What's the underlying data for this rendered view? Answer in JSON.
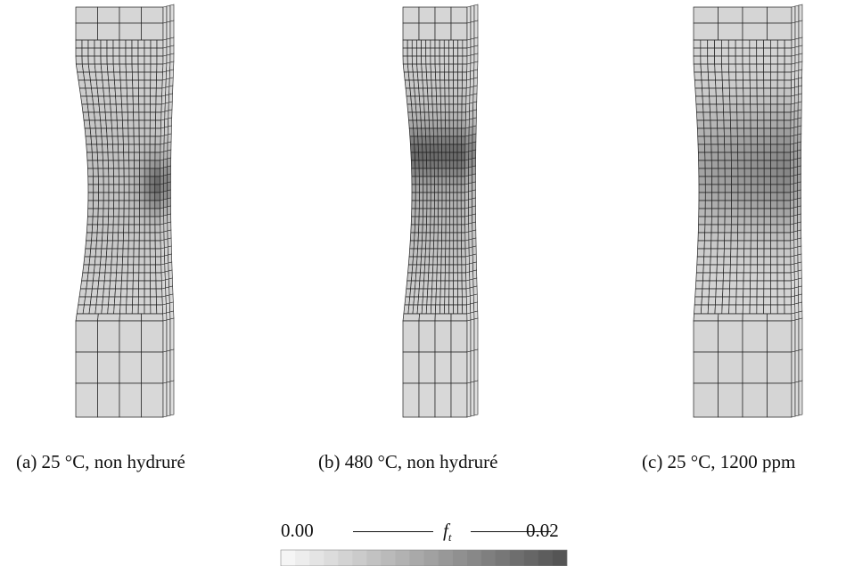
{
  "figure": {
    "subfigures": [
      {
        "caption": "(a) 25 °C, non hydruré"
      },
      {
        "caption": "(b) 480 °C, non hydruré"
      },
      {
        "caption": "(c) 25 °C, 1200 ppm"
      }
    ],
    "colorbar": {
      "min_label": "0.00",
      "variable": "f",
      "variable_subscript": "t",
      "max_label": "0.02"
    }
  }
}
